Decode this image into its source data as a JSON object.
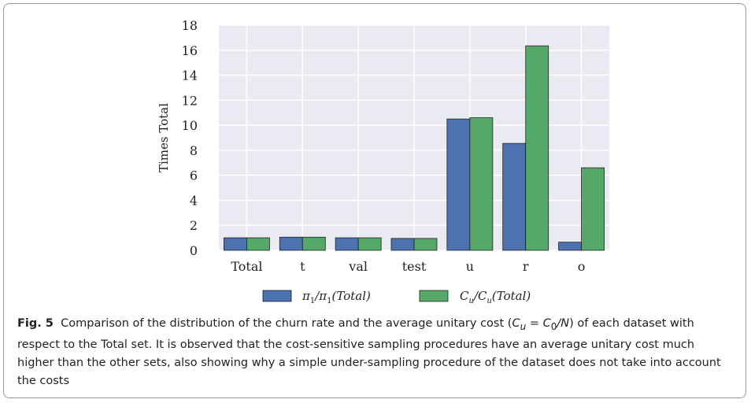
{
  "chart_data": {
    "type": "bar",
    "categories": [
      "Total",
      "t",
      "val",
      "test",
      "u",
      "r",
      "o"
    ],
    "series": [
      {
        "name": "π1/π1(Total)",
        "color": "#4c72b0",
        "values": [
          1.0,
          1.05,
          1.0,
          0.95,
          10.5,
          8.55,
          0.65
        ]
      },
      {
        "name": "Cu/Cu(Total)",
        "color": "#55a868",
        "values": [
          1.0,
          1.05,
          1.0,
          0.95,
          10.6,
          16.35,
          6.6
        ]
      }
    ],
    "ylabel": "Times Total",
    "ylim": [
      0,
      18
    ],
    "yticks": [
      0,
      2,
      4,
      6,
      8,
      10,
      12,
      14,
      16,
      18
    ],
    "grid": true,
    "legend_position": "bottom"
  },
  "legend": {
    "s1": {
      "base": "π",
      "sub": "1",
      "mid": "/π",
      "sub2": "1",
      "tail": "(Total)"
    },
    "s2": {
      "base": "C",
      "sub": "u",
      "mid": "/C",
      "sub2": "u",
      "tail": "(Total)"
    }
  },
  "caption": {
    "label": "Fig. 5",
    "text_before": "Comparison of the distribution of the churn rate and the average unitary cost (",
    "formula": "C",
    "formula_sub": "u",
    "formula_eq": " = C",
    "formula_sub2": "0",
    "formula_tail": "/N",
    "text_after": ") of each dataset with respect to the Total set. It is observed that the cost-sensitive sampling procedures have an average unitary cost much higher than the other sets, also showing why a simple under-sampling procedure of the dataset does not take into account the costs"
  }
}
